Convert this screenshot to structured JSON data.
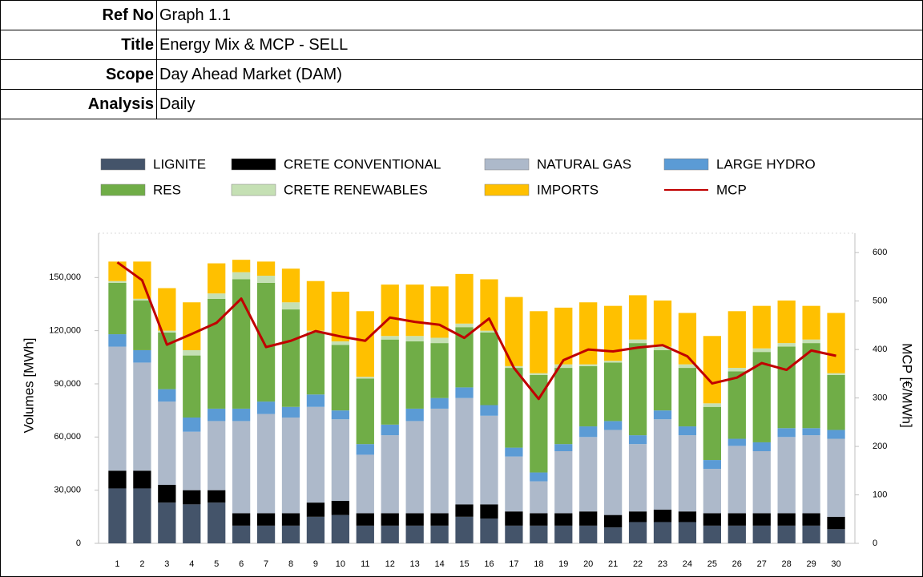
{
  "header": {
    "rows": [
      {
        "label": "Ref No",
        "value": "Graph 1.1"
      },
      {
        "label": "Title",
        "value": "Energy Mix & MCP - SELL"
      },
      {
        "label": "Scope",
        "value": "Day Ahead Market (DAM)"
      },
      {
        "label": "Analysis",
        "value": "Daily"
      }
    ]
  },
  "chart_data": {
    "type": "bar",
    "stacked": true,
    "y_label": "Volumes [MWh]",
    "y2_label": "MCP [€/MWh]",
    "categories": [
      "1",
      "2",
      "3",
      "4",
      "5",
      "6",
      "7",
      "8",
      "9",
      "10",
      "11",
      "12",
      "13",
      "14",
      "15",
      "16",
      "17",
      "18",
      "19",
      "20",
      "21",
      "22",
      "23",
      "24",
      "25",
      "26",
      "27",
      "28",
      "29",
      "30"
    ],
    "ylim": [
      0,
      175000
    ],
    "yticks": [
      0,
      {
        "value": 30000,
        "label": "30,000"
      },
      {
        "value": 60000,
        "label": "60,000"
      },
      {
        "value": 90000,
        "label": "90,000"
      },
      {
        "value": 120000,
        "label": "120,000"
      },
      {
        "value": 150000,
        "label": "150,000"
      }
    ],
    "y2lim": [
      0,
      640
    ],
    "y2ticks": [
      0,
      100,
      200,
      300,
      400,
      500,
      600
    ],
    "series": [
      {
        "name": "LIGNITE",
        "color": "#44546a",
        "values": [
          31000,
          31000,
          23000,
          22000,
          23000,
          10000,
          10000,
          10000,
          15000,
          16000,
          10000,
          10000,
          10000,
          10000,
          15000,
          14000,
          10000,
          10000,
          10000,
          10000,
          9000,
          12000,
          12000,
          12000,
          10000,
          10000,
          10000,
          10000,
          10000,
          8000
        ]
      },
      {
        "name": "CRETE CONVENTIONAL",
        "color": "#000000",
        "values": [
          10000,
          10000,
          10000,
          8000,
          7000,
          7000,
          7000,
          7000,
          8000,
          8000,
          7000,
          7000,
          7000,
          7000,
          7000,
          8000,
          8000,
          7000,
          7000,
          8000,
          7000,
          6000,
          7000,
          6000,
          7000,
          7000,
          7000,
          7000,
          7000,
          7000
        ]
      },
      {
        "name": "NATURAL GAS",
        "color": "#adb9ca",
        "values": [
          70000,
          61000,
          47000,
          33000,
          39000,
          52000,
          56000,
          54000,
          54000,
          46000,
          33000,
          44000,
          52000,
          59000,
          60000,
          50000,
          31000,
          18000,
          35000,
          42000,
          48000,
          38000,
          51000,
          43000,
          25000,
          38000,
          35000,
          43000,
          44000,
          44000
        ]
      },
      {
        "name": "LARGE HYDRO",
        "color": "#5b9bd5",
        "values": [
          7000,
          7000,
          7000,
          8000,
          7000,
          7000,
          7000,
          6000,
          7000,
          5000,
          6000,
          6000,
          7000,
          6000,
          6000,
          6000,
          5000,
          5000,
          4000,
          6000,
          5000,
          5000,
          5000,
          5000,
          5000,
          4000,
          5000,
          5000,
          4000,
          5000
        ]
      },
      {
        "name": "RES",
        "color": "#70ad47",
        "values": [
          29000,
          28000,
          32000,
          35000,
          62000,
          73000,
          67000,
          55000,
          35000,
          37000,
          37000,
          48000,
          38000,
          31000,
          34000,
          41000,
          45000,
          55000,
          43000,
          34000,
          33000,
          52000,
          34000,
          33000,
          30000,
          38000,
          51000,
          46000,
          48000,
          31000
        ]
      },
      {
        "name": "CRETE RENEWABLES",
        "color": "#c5e0b4",
        "values": [
          1000,
          1000,
          1000,
          3000,
          3000,
          4000,
          4000,
          4000,
          1000,
          2000,
          1000,
          2000,
          3000,
          3000,
          2000,
          1000,
          1000,
          1000,
          2000,
          1000,
          1000,
          2000,
          2000,
          2000,
          2000,
          2000,
          2000,
          2000,
          2000,
          1000
        ]
      },
      {
        "name": "IMPORTS",
        "color": "#ffc000",
        "values": [
          11000,
          21000,
          24000,
          27000,
          17000,
          7000,
          8000,
          19000,
          28000,
          28000,
          37000,
          29000,
          29000,
          29000,
          28000,
          29000,
          39000,
          35000,
          32000,
          35000,
          31000,
          25000,
          26000,
          29000,
          38000,
          32000,
          24000,
          24000,
          19000,
          34000
        ]
      },
      {
        "name": "MCP",
        "color": "#c00000",
        "type": "line",
        "axis": "y2",
        "values": [
          580,
          543,
          410,
          432,
          455,
          505,
          405,
          418,
          438,
          427,
          418,
          466,
          457,
          451,
          424,
          464,
          362,
          298,
          378,
          400,
          396,
          404,
          409,
          386,
          330,
          342,
          372,
          358,
          398,
          387
        ]
      }
    ]
  }
}
